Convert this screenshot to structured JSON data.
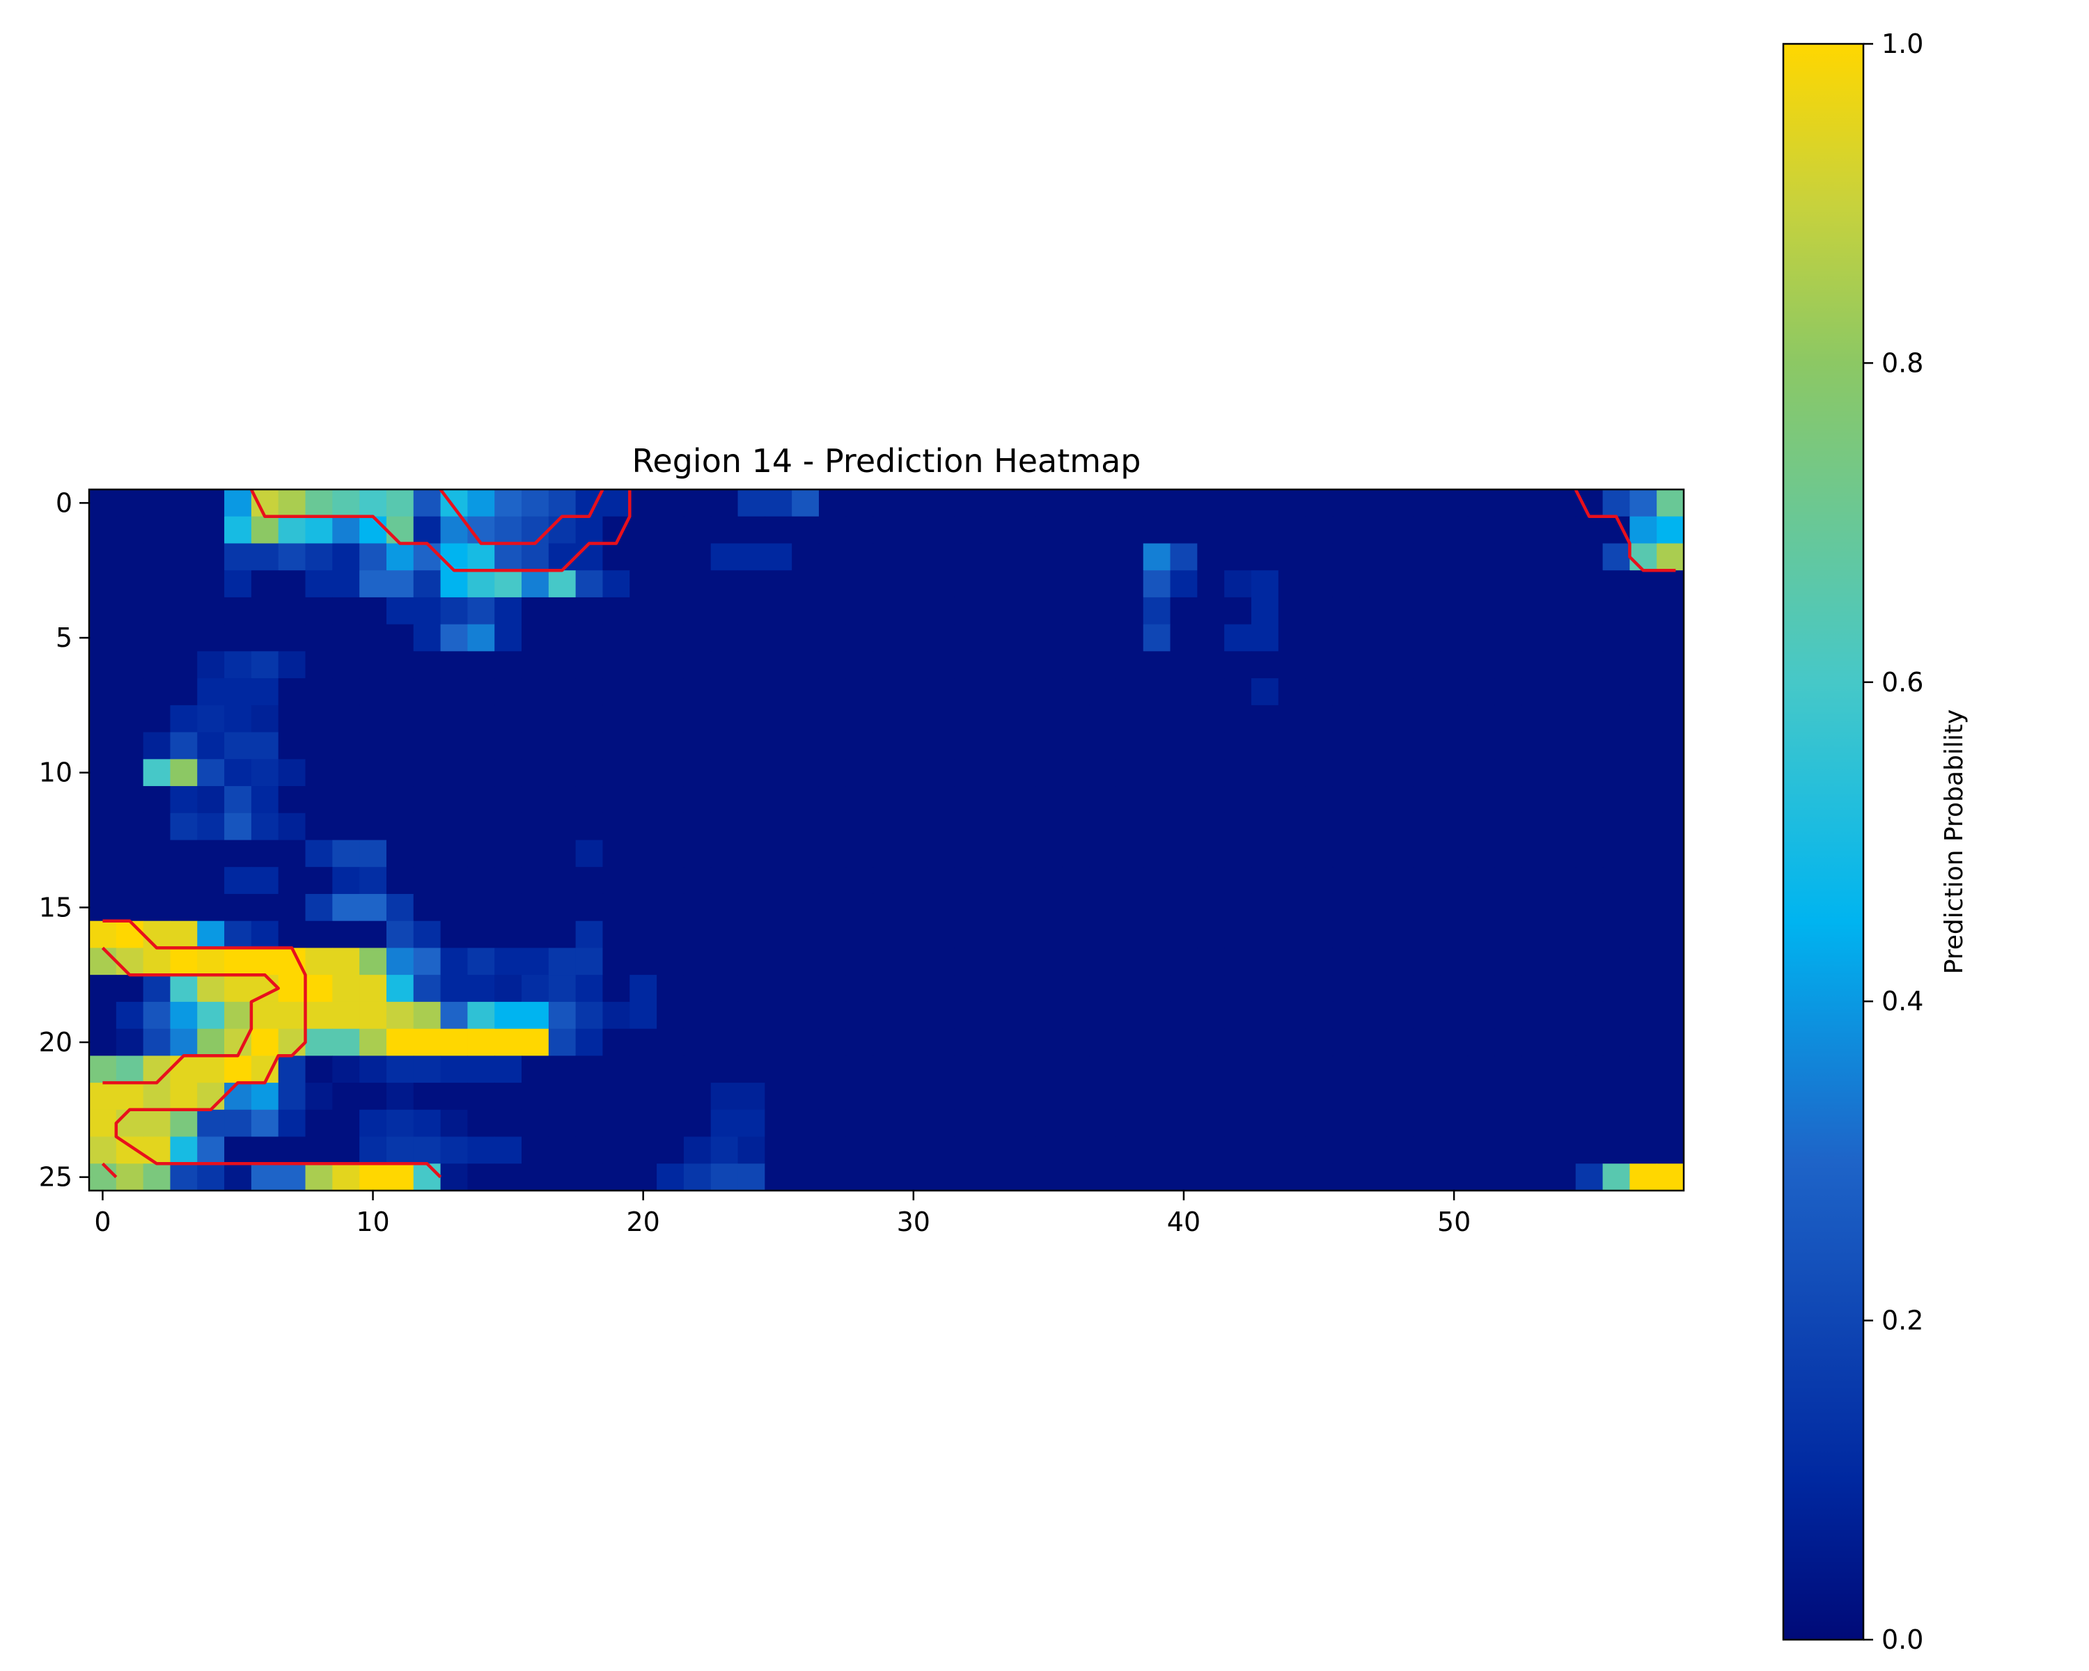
{
  "chart_data": {
    "type": "heatmap",
    "title": "Region 14 - Prediction Heatmap",
    "rows": 26,
    "cols": 59,
    "x_ticks": [
      0,
      10,
      20,
      30,
      40,
      50
    ],
    "y_ticks": [
      0,
      5,
      10,
      15,
      20,
      25
    ],
    "colorbar": {
      "label": "Prediction Probability",
      "ticks": [
        "0.0",
        "0.2",
        "0.4",
        "0.6",
        "0.8",
        "1.0"
      ],
      "range": [
        0,
        1
      ],
      "colormap": [
        "#000a78",
        "#0028a0",
        "#1e64c8",
        "#00b4f0",
        "#46c8c8",
        "#8cc864",
        "#c8d23c",
        "#ffd700"
      ]
    },
    "background_value": 0.02,
    "cells": [
      [
        0,
        5,
        0.4
      ],
      [
        0,
        6,
        0.9
      ],
      [
        0,
        7,
        0.85
      ],
      [
        0,
        8,
        0.7
      ],
      [
        0,
        9,
        0.65
      ],
      [
        0,
        10,
        0.6
      ],
      [
        0,
        11,
        0.65
      ],
      [
        0,
        12,
        0.25
      ],
      [
        0,
        13,
        0.5
      ],
      [
        0,
        14,
        0.4
      ],
      [
        0,
        15,
        0.3
      ],
      [
        0,
        16,
        0.25
      ],
      [
        0,
        17,
        0.2
      ],
      [
        0,
        18,
        0.1
      ],
      [
        0,
        19,
        0.1
      ],
      [
        0,
        24,
        0.15
      ],
      [
        0,
        25,
        0.15
      ],
      [
        0,
        26,
        0.25
      ],
      [
        0,
        56,
        0.2
      ],
      [
        0,
        57,
        0.3
      ],
      [
        0,
        58,
        0.7
      ],
      [
        1,
        5,
        0.5
      ],
      [
        1,
        6,
        0.8
      ],
      [
        1,
        7,
        0.55
      ],
      [
        1,
        8,
        0.5
      ],
      [
        1,
        9,
        0.35
      ],
      [
        1,
        10,
        0.45
      ],
      [
        1,
        11,
        0.7
      ],
      [
        1,
        12,
        0.1
      ],
      [
        1,
        13,
        0.35
      ],
      [
        1,
        14,
        0.3
      ],
      [
        1,
        15,
        0.25
      ],
      [
        1,
        16,
        0.2
      ],
      [
        1,
        17,
        0.15
      ],
      [
        1,
        18,
        0.1
      ],
      [
        1,
        57,
        0.4
      ],
      [
        1,
        58,
        0.45
      ],
      [
        2,
        5,
        0.15
      ],
      [
        2,
        6,
        0.15
      ],
      [
        2,
        7,
        0.2
      ],
      [
        2,
        8,
        0.15
      ],
      [
        2,
        9,
        0.1
      ],
      [
        2,
        10,
        0.25
      ],
      [
        2,
        11,
        0.4
      ],
      [
        2,
        12,
        0.3
      ],
      [
        2,
        13,
        0.45
      ],
      [
        2,
        14,
        0.5
      ],
      [
        2,
        15,
        0.25
      ],
      [
        2,
        16,
        0.2
      ],
      [
        2,
        17,
        0.1
      ],
      [
        2,
        18,
        0.1
      ],
      [
        2,
        23,
        0.1
      ],
      [
        2,
        24,
        0.1
      ],
      [
        2,
        25,
        0.1
      ],
      [
        2,
        39,
        0.35
      ],
      [
        2,
        40,
        0.2
      ],
      [
        2,
        56,
        0.2
      ],
      [
        2,
        57,
        0.65
      ],
      [
        2,
        58,
        0.85
      ],
      [
        3,
        5,
        0.1
      ],
      [
        3,
        8,
        0.1
      ],
      [
        3,
        9,
        0.1
      ],
      [
        3,
        10,
        0.3
      ],
      [
        3,
        11,
        0.3
      ],
      [
        3,
        12,
        0.15
      ],
      [
        3,
        13,
        0.45
      ],
      [
        3,
        14,
        0.55
      ],
      [
        3,
        15,
        0.6
      ],
      [
        3,
        16,
        0.35
      ],
      [
        3,
        17,
        0.6
      ],
      [
        3,
        18,
        0.2
      ],
      [
        3,
        19,
        0.1
      ],
      [
        3,
        39,
        0.25
      ],
      [
        3,
        40,
        0.1
      ],
      [
        3,
        42,
        0.08
      ],
      [
        3,
        43,
        0.1
      ],
      [
        4,
        11,
        0.1
      ],
      [
        4,
        12,
        0.1
      ],
      [
        4,
        13,
        0.15
      ],
      [
        4,
        14,
        0.2
      ],
      [
        4,
        15,
        0.1
      ],
      [
        4,
        39,
        0.15
      ],
      [
        4,
        43,
        0.1
      ],
      [
        5,
        12,
        0.1
      ],
      [
        5,
        13,
        0.3
      ],
      [
        5,
        14,
        0.35
      ],
      [
        5,
        15,
        0.1
      ],
      [
        5,
        39,
        0.2
      ],
      [
        5,
        42,
        0.1
      ],
      [
        5,
        43,
        0.1
      ],
      [
        6,
        4,
        0.08
      ],
      [
        6,
        5,
        0.12
      ],
      [
        6,
        6,
        0.15
      ],
      [
        6,
        7,
        0.08
      ],
      [
        7,
        4,
        0.1
      ],
      [
        7,
        5,
        0.1
      ],
      [
        7,
        6,
        0.1
      ],
      [
        7,
        43,
        0.08
      ],
      [
        8,
        3,
        0.1
      ],
      [
        8,
        4,
        0.12
      ],
      [
        8,
        5,
        0.1
      ],
      [
        8,
        6,
        0.08
      ],
      [
        9,
        2,
        0.08
      ],
      [
        9,
        3,
        0.2
      ],
      [
        9,
        4,
        0.1
      ],
      [
        9,
        5,
        0.15
      ],
      [
        9,
        6,
        0.15
      ],
      [
        10,
        2,
        0.6
      ],
      [
        10,
        3,
        0.8
      ],
      [
        10,
        4,
        0.2
      ],
      [
        10,
        5,
        0.1
      ],
      [
        10,
        6,
        0.12
      ],
      [
        10,
        7,
        0.08
      ],
      [
        11,
        3,
        0.1
      ],
      [
        11,
        4,
        0.08
      ],
      [
        11,
        5,
        0.2
      ],
      [
        11,
        6,
        0.1
      ],
      [
        12,
        3,
        0.15
      ],
      [
        12,
        4,
        0.12
      ],
      [
        12,
        5,
        0.25
      ],
      [
        12,
        6,
        0.12
      ],
      [
        12,
        7,
        0.08
      ],
      [
        13,
        8,
        0.12
      ],
      [
        13,
        9,
        0.2
      ],
      [
        13,
        10,
        0.2
      ],
      [
        13,
        18,
        0.08
      ],
      [
        14,
        5,
        0.1
      ],
      [
        14,
        6,
        0.1
      ],
      [
        14,
        9,
        0.1
      ],
      [
        14,
        10,
        0.12
      ],
      [
        15,
        8,
        0.15
      ],
      [
        15,
        9,
        0.3
      ],
      [
        15,
        10,
        0.3
      ],
      [
        15,
        11,
        0.15
      ],
      [
        16,
        0,
        0.98
      ],
      [
        16,
        1,
        1.0
      ],
      [
        16,
        2,
        0.95
      ],
      [
        16,
        3,
        0.95
      ],
      [
        16,
        4,
        0.4
      ],
      [
        16,
        5,
        0.15
      ],
      [
        16,
        6,
        0.1
      ],
      [
        16,
        11,
        0.2
      ],
      [
        16,
        12,
        0.12
      ],
      [
        16,
        18,
        0.12
      ],
      [
        17,
        0,
        0.85
      ],
      [
        17,
        1,
        0.9
      ],
      [
        17,
        2,
        0.95
      ],
      [
        17,
        3,
        1.0
      ],
      [
        17,
        4,
        0.98
      ],
      [
        17,
        5,
        1.0
      ],
      [
        17,
        6,
        1.0
      ],
      [
        17,
        7,
        1.0
      ],
      [
        17,
        8,
        0.95
      ],
      [
        17,
        9,
        0.95
      ],
      [
        17,
        10,
        0.8
      ],
      [
        17,
        11,
        0.35
      ],
      [
        17,
        12,
        0.3
      ],
      [
        17,
        13,
        0.1
      ],
      [
        17,
        14,
        0.15
      ],
      [
        17,
        15,
        0.1
      ],
      [
        17,
        16,
        0.1
      ],
      [
        17,
        17,
        0.15
      ],
      [
        17,
        18,
        0.15
      ],
      [
        18,
        2,
        0.15
      ],
      [
        18,
        3,
        0.6
      ],
      [
        18,
        4,
        0.9
      ],
      [
        18,
        5,
        0.95
      ],
      [
        18,
        6,
        0.95
      ],
      [
        18,
        7,
        1.0
      ],
      [
        18,
        8,
        1.0
      ],
      [
        18,
        9,
        0.95
      ],
      [
        18,
        10,
        0.95
      ],
      [
        18,
        11,
        0.5
      ],
      [
        18,
        12,
        0.2
      ],
      [
        18,
        13,
        0.1
      ],
      [
        18,
        14,
        0.1
      ],
      [
        18,
        15,
        0.08
      ],
      [
        18,
        16,
        0.12
      ],
      [
        18,
        17,
        0.15
      ],
      [
        18,
        18,
        0.1
      ],
      [
        18,
        20,
        0.1
      ],
      [
        19,
        1,
        0.1
      ],
      [
        19,
        2,
        0.25
      ],
      [
        19,
        3,
        0.4
      ],
      [
        19,
        4,
        0.6
      ],
      [
        19,
        5,
        0.85
      ],
      [
        19,
        6,
        0.95
      ],
      [
        19,
        7,
        0.95
      ],
      [
        19,
        8,
        0.95
      ],
      [
        19,
        9,
        0.95
      ],
      [
        19,
        10,
        0.95
      ],
      [
        19,
        11,
        0.9
      ],
      [
        19,
        12,
        0.85
      ],
      [
        19,
        13,
        0.3
      ],
      [
        19,
        14,
        0.55
      ],
      [
        19,
        15,
        0.45
      ],
      [
        19,
        16,
        0.45
      ],
      [
        19,
        17,
        0.25
      ],
      [
        19,
        18,
        0.15
      ],
      [
        19,
        19,
        0.08
      ],
      [
        19,
        20,
        0.1
      ],
      [
        20,
        1,
        0.05
      ],
      [
        20,
        2,
        0.2
      ],
      [
        20,
        3,
        0.35
      ],
      [
        20,
        4,
        0.8
      ],
      [
        20,
        5,
        0.9
      ],
      [
        20,
        6,
        1.0
      ],
      [
        20,
        7,
        0.9
      ],
      [
        20,
        8,
        0.65
      ],
      [
        20,
        9,
        0.65
      ],
      [
        20,
        10,
        0.85
      ],
      [
        20,
        11,
        1.0
      ],
      [
        20,
        12,
        1.0
      ],
      [
        20,
        13,
        1.0
      ],
      [
        20,
        14,
        1.0
      ],
      [
        20,
        15,
        1.0
      ],
      [
        20,
        16,
        1.0
      ],
      [
        20,
        17,
        0.2
      ],
      [
        20,
        18,
        0.1
      ],
      [
        21,
        0,
        0.75
      ],
      [
        21,
        1,
        0.7
      ],
      [
        21,
        2,
        0.9
      ],
      [
        21,
        3,
        0.95
      ],
      [
        21,
        4,
        0.95
      ],
      [
        21,
        5,
        1.0
      ],
      [
        21,
        6,
        0.95
      ],
      [
        21,
        7,
        0.15
      ],
      [
        21,
        9,
        0.05
      ],
      [
        21,
        10,
        0.08
      ],
      [
        21,
        11,
        0.12
      ],
      [
        21,
        12,
        0.12
      ],
      [
        21,
        13,
        0.1
      ],
      [
        21,
        14,
        0.1
      ],
      [
        21,
        15,
        0.1
      ],
      [
        22,
        0,
        0.95
      ],
      [
        22,
        1,
        0.95
      ],
      [
        22,
        2,
        0.9
      ],
      [
        22,
        3,
        0.95
      ],
      [
        22,
        4,
        0.9
      ],
      [
        22,
        5,
        0.35
      ],
      [
        22,
        6,
        0.4
      ],
      [
        22,
        7,
        0.15
      ],
      [
        22,
        8,
        0.05
      ],
      [
        22,
        11,
        0.05
      ],
      [
        22,
        23,
        0.08
      ],
      [
        22,
        24,
        0.08
      ],
      [
        23,
        0,
        0.95
      ],
      [
        23,
        1,
        0.9
      ],
      [
        23,
        2,
        0.9
      ],
      [
        23,
        3,
        0.75
      ],
      [
        23,
        4,
        0.2
      ],
      [
        23,
        5,
        0.2
      ],
      [
        23,
        6,
        0.3
      ],
      [
        23,
        7,
        0.1
      ],
      [
        23,
        10,
        0.1
      ],
      [
        23,
        11,
        0.12
      ],
      [
        23,
        12,
        0.1
      ],
      [
        23,
        13,
        0.05
      ],
      [
        23,
        23,
        0.1
      ],
      [
        23,
        24,
        0.1
      ],
      [
        24,
        0,
        0.9
      ],
      [
        24,
        1,
        0.95
      ],
      [
        24,
        2,
        0.95
      ],
      [
        24,
        3,
        0.5
      ],
      [
        24,
        4,
        0.3
      ],
      [
        24,
        10,
        0.12
      ],
      [
        24,
        11,
        0.15
      ],
      [
        24,
        12,
        0.15
      ],
      [
        24,
        13,
        0.12
      ],
      [
        24,
        14,
        0.1
      ],
      [
        24,
        15,
        0.1
      ],
      [
        24,
        22,
        0.08
      ],
      [
        24,
        23,
        0.12
      ],
      [
        24,
        24,
        0.08
      ],
      [
        25,
        0,
        0.75
      ],
      [
        25,
        1,
        0.85
      ],
      [
        25,
        2,
        0.75
      ],
      [
        25,
        3,
        0.2
      ],
      [
        25,
        4,
        0.15
      ],
      [
        25,
        5,
        0.05
      ],
      [
        25,
        6,
        0.3
      ],
      [
        25,
        7,
        0.3
      ],
      [
        25,
        8,
        0.85
      ],
      [
        25,
        9,
        0.95
      ],
      [
        25,
        10,
        1.0
      ],
      [
        25,
        11,
        1.0
      ],
      [
        25,
        12,
        0.6
      ],
      [
        25,
        13,
        0.05
      ],
      [
        25,
        21,
        0.1
      ],
      [
        25,
        22,
        0.15
      ],
      [
        25,
        23,
        0.2
      ],
      [
        25,
        24,
        0.2
      ],
      [
        25,
        55,
        0.15
      ],
      [
        25,
        56,
        0.65
      ],
      [
        25,
        57,
        1.0
      ],
      [
        25,
        58,
        1.0
      ]
    ],
    "contours": [
      [
        [
          5.5,
          -0.5
        ],
        [
          6,
          0.5
        ],
        [
          10,
          0.5
        ],
        [
          11,
          1.5
        ],
        [
          12,
          1.5
        ],
        [
          13,
          2.5
        ],
        [
          17,
          2.5
        ],
        [
          18,
          1.5
        ],
        [
          19,
          1.5
        ],
        [
          19.5,
          0.5
        ],
        [
          19.5,
          -0.5
        ]
      ],
      [
        [
          12.5,
          -0.5
        ],
        [
          14,
          1.5
        ],
        [
          16,
          1.5
        ],
        [
          17,
          0.5
        ],
        [
          18,
          0.5
        ],
        [
          18.5,
          -0.5
        ]
      ],
      [
        [
          54.5,
          -0.5
        ],
        [
          55,
          0.5
        ],
        [
          56,
          0.5
        ],
        [
          56.5,
          1.5
        ],
        [
          56.5,
          2
        ],
        [
          57,
          2.5
        ],
        [
          58.2,
          2.5
        ]
      ],
      [
        [
          0,
          15.5
        ],
        [
          1,
          15.5
        ],
        [
          2,
          16.5
        ],
        [
          7,
          16.5
        ],
        [
          7.5,
          17.5
        ],
        [
          7.5,
          20
        ],
        [
          7,
          20.5
        ],
        [
          6.5,
          20.5
        ],
        [
          6,
          21.5
        ],
        [
          5,
          21.5
        ],
        [
          4,
          22.5
        ],
        [
          1,
          22.5
        ],
        [
          0.5,
          23
        ],
        [
          0.5,
          23.5
        ],
        [
          2,
          24.5
        ],
        [
          12,
          24.5
        ],
        [
          12.5,
          25
        ]
      ],
      [
        [
          0,
          16.5
        ],
        [
          1,
          17.5
        ],
        [
          6,
          17.5
        ],
        [
          6.5,
          18
        ],
        [
          5.5,
          18.5
        ],
        [
          5.5,
          19.5
        ],
        [
          5,
          20.5
        ],
        [
          3,
          20.5
        ],
        [
          2,
          21.5
        ],
        [
          0,
          21.5
        ]
      ],
      [
        [
          0,
          24.5
        ],
        [
          0.5,
          25
        ]
      ]
    ],
    "contour_color": "#e8101c"
  }
}
